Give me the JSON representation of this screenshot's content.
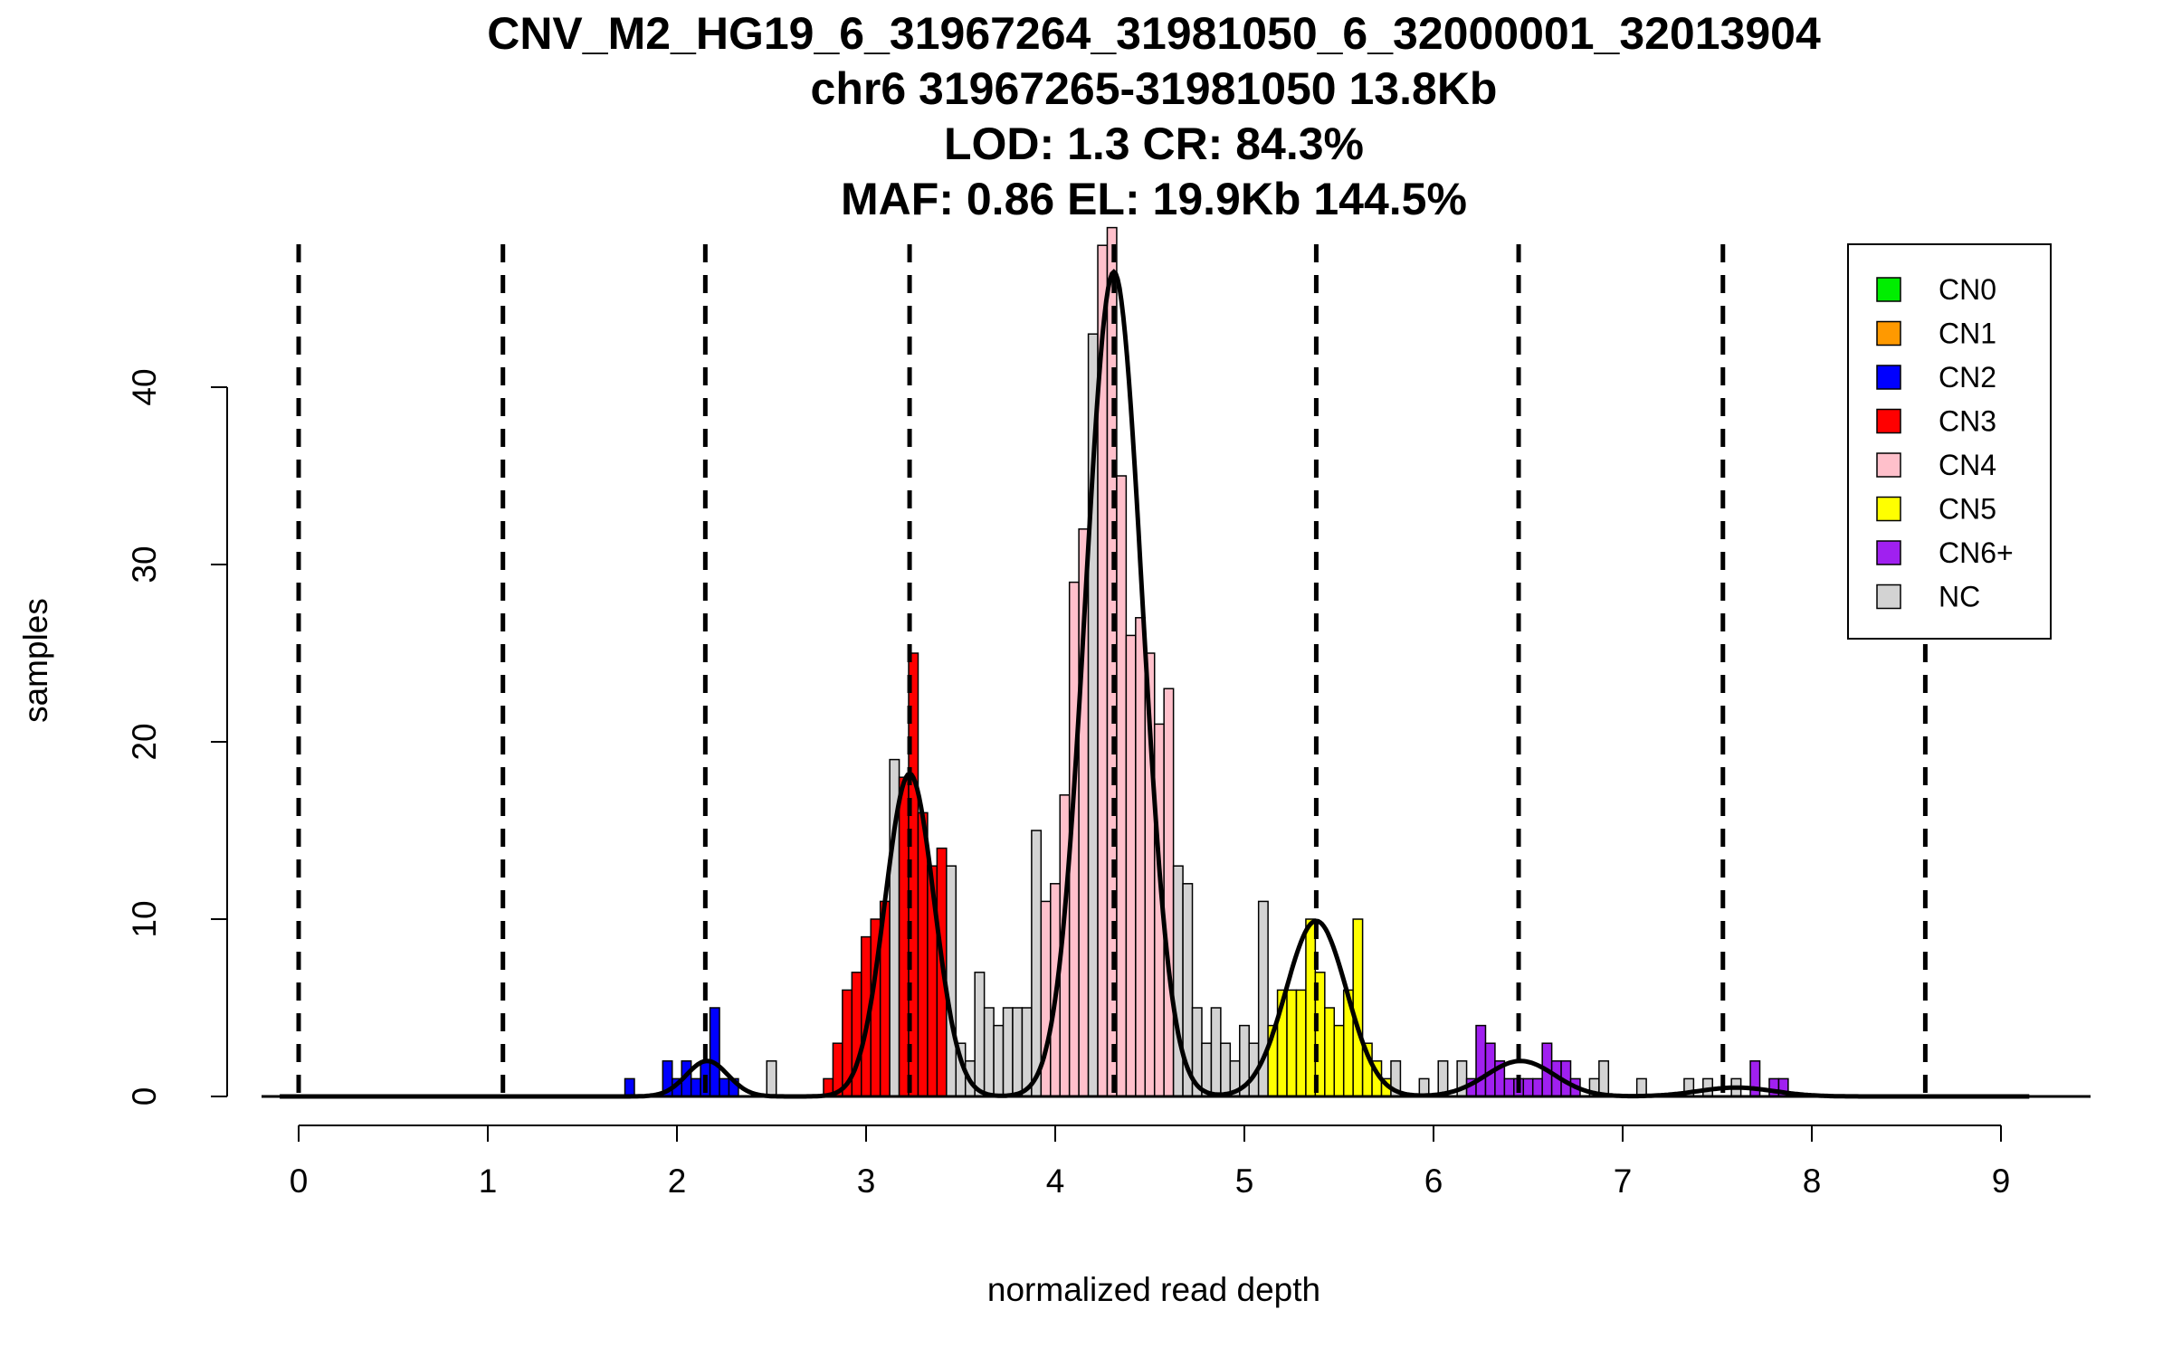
{
  "chart_data": {
    "type": "bar",
    "title_lines": [
      "CNV_M2_HG19_6_31967264_31981050_6_32000001_32013904",
      "chr6 31967265-31981050 13.8Kb",
      "LOD: 1.3 CR: 84.3%",
      "MAF: 0.86 EL: 19.9Kb 144.5%"
    ],
    "xlabel": "normalized read depth",
    "ylabel": "samples",
    "xlim": [
      -0.2,
      9.5
    ],
    "ylim": [
      0,
      48
    ],
    "x_ticks": [
      0,
      1,
      2,
      3,
      4,
      5,
      6,
      7,
      8,
      9
    ],
    "y_ticks": [
      0,
      10,
      20,
      30,
      40
    ],
    "bin_width": 0.05,
    "colors": {
      "CN0": "#00ee00",
      "CN1": "#ff9900",
      "CN2": "#0000ff",
      "CN3": "#ff0000",
      "CN4": "#ffc0cb",
      "CN5": "#ffff00",
      "CN6+": "#a020f0",
      "NC": "#d3d3d3"
    },
    "legend": {
      "position": "top-right",
      "entries": [
        "CN0",
        "CN1",
        "CN2",
        "CN3",
        "CN4",
        "CN5",
        "CN6+",
        "NC"
      ]
    },
    "cutoffs": [
      0,
      1.08,
      2.15,
      3.23,
      4.31,
      5.38,
      6.45,
      7.53,
      8.6
    ],
    "fitted_curves": [
      {
        "mean": 2.16,
        "sd": 0.11,
        "peak": 2
      },
      {
        "mean": 3.23,
        "sd": 0.13,
        "peak": 18.2
      },
      {
        "mean": 4.31,
        "sd": 0.15,
        "peak": 46.5
      },
      {
        "mean": 5.38,
        "sd": 0.16,
        "peak": 9.9
      },
      {
        "mean": 6.46,
        "sd": 0.18,
        "peak": 2
      },
      {
        "mean": 7.6,
        "sd": 0.2,
        "peak": 0.5
      }
    ],
    "bars": [
      {
        "x": 1.75,
        "y": 1,
        "cn": "CN2"
      },
      {
        "x": 1.95,
        "y": 2,
        "cn": "CN2"
      },
      {
        "x": 2.0,
        "y": 1,
        "cn": "CN2"
      },
      {
        "x": 2.05,
        "y": 2,
        "cn": "CN2"
      },
      {
        "x": 2.1,
        "y": 1,
        "cn": "CN2"
      },
      {
        "x": 2.15,
        "y": 2,
        "cn": "CN2"
      },
      {
        "x": 2.2,
        "y": 5,
        "cn": "CN2"
      },
      {
        "x": 2.25,
        "y": 1,
        "cn": "CN2"
      },
      {
        "x": 2.3,
        "y": 1,
        "cn": "CN2"
      },
      {
        "x": 2.5,
        "y": 2,
        "cn": "NC"
      },
      {
        "x": 2.8,
        "y": 1,
        "cn": "CN3"
      },
      {
        "x": 2.85,
        "y": 3,
        "cn": "CN3"
      },
      {
        "x": 2.9,
        "y": 6,
        "cn": "CN3"
      },
      {
        "x": 2.95,
        "y": 7,
        "cn": "CN3"
      },
      {
        "x": 3.0,
        "y": 9,
        "cn": "CN3"
      },
      {
        "x": 3.05,
        "y": 10,
        "cn": "CN3"
      },
      {
        "x": 3.1,
        "y": 11,
        "cn": "CN3"
      },
      {
        "x": 3.15,
        "y": 19,
        "cn": "NC"
      },
      {
        "x": 3.2,
        "y": 18,
        "cn": "CN3"
      },
      {
        "x": 3.25,
        "y": 25,
        "cn": "CN3"
      },
      {
        "x": 3.3,
        "y": 16,
        "cn": "CN3"
      },
      {
        "x": 3.35,
        "y": 13,
        "cn": "CN3"
      },
      {
        "x": 3.4,
        "y": 14,
        "cn": "CN3"
      },
      {
        "x": 3.45,
        "y": 13,
        "cn": "NC"
      },
      {
        "x": 3.5,
        "y": 3,
        "cn": "NC"
      },
      {
        "x": 3.55,
        "y": 2,
        "cn": "NC"
      },
      {
        "x": 3.6,
        "y": 7,
        "cn": "NC"
      },
      {
        "x": 3.65,
        "y": 5,
        "cn": "NC"
      },
      {
        "x": 3.7,
        "y": 4,
        "cn": "NC"
      },
      {
        "x": 3.75,
        "y": 5,
        "cn": "NC"
      },
      {
        "x": 3.8,
        "y": 5,
        "cn": "NC"
      },
      {
        "x": 3.85,
        "y": 5,
        "cn": "NC"
      },
      {
        "x": 3.9,
        "y": 15,
        "cn": "NC"
      },
      {
        "x": 3.95,
        "y": 11,
        "cn": "CN4"
      },
      {
        "x": 4.0,
        "y": 12,
        "cn": "CN4"
      },
      {
        "x": 4.05,
        "y": 17,
        "cn": "CN4"
      },
      {
        "x": 4.1,
        "y": 29,
        "cn": "CN4"
      },
      {
        "x": 4.15,
        "y": 32,
        "cn": "CN4"
      },
      {
        "x": 4.2,
        "y": 43,
        "cn": "NC"
      },
      {
        "x": 4.25,
        "y": 48,
        "cn": "CN4"
      },
      {
        "x": 4.3,
        "y": 49,
        "cn": "CN4"
      },
      {
        "x": 4.35,
        "y": 35,
        "cn": "CN4"
      },
      {
        "x": 4.4,
        "y": 26,
        "cn": "CN4"
      },
      {
        "x": 4.45,
        "y": 27,
        "cn": "CN4"
      },
      {
        "x": 4.5,
        "y": 25,
        "cn": "CN4"
      },
      {
        "x": 4.55,
        "y": 21,
        "cn": "CN4"
      },
      {
        "x": 4.6,
        "y": 23,
        "cn": "CN4"
      },
      {
        "x": 4.65,
        "y": 13,
        "cn": "NC"
      },
      {
        "x": 4.7,
        "y": 12,
        "cn": "NC"
      },
      {
        "x": 4.75,
        "y": 5,
        "cn": "NC"
      },
      {
        "x": 4.8,
        "y": 3,
        "cn": "NC"
      },
      {
        "x": 4.85,
        "y": 5,
        "cn": "NC"
      },
      {
        "x": 4.9,
        "y": 3,
        "cn": "NC"
      },
      {
        "x": 4.95,
        "y": 2,
        "cn": "NC"
      },
      {
        "x": 5.0,
        "y": 4,
        "cn": "NC"
      },
      {
        "x": 5.05,
        "y": 3,
        "cn": "NC"
      },
      {
        "x": 5.1,
        "y": 11,
        "cn": "NC"
      },
      {
        "x": 5.15,
        "y": 4,
        "cn": "CN5"
      },
      {
        "x": 5.2,
        "y": 6,
        "cn": "CN5"
      },
      {
        "x": 5.25,
        "y": 6,
        "cn": "CN5"
      },
      {
        "x": 5.3,
        "y": 6,
        "cn": "CN5"
      },
      {
        "x": 5.35,
        "y": 10,
        "cn": "CN5"
      },
      {
        "x": 5.4,
        "y": 7,
        "cn": "CN5"
      },
      {
        "x": 5.45,
        "y": 5,
        "cn": "CN5"
      },
      {
        "x": 5.5,
        "y": 4,
        "cn": "CN5"
      },
      {
        "x": 5.55,
        "y": 6,
        "cn": "CN5"
      },
      {
        "x": 5.6,
        "y": 10,
        "cn": "CN5"
      },
      {
        "x": 5.65,
        "y": 3,
        "cn": "CN5"
      },
      {
        "x": 5.7,
        "y": 2,
        "cn": "CN5"
      },
      {
        "x": 5.75,
        "y": 1,
        "cn": "CN5"
      },
      {
        "x": 5.8,
        "y": 2,
        "cn": "NC"
      },
      {
        "x": 5.95,
        "y": 1,
        "cn": "NC"
      },
      {
        "x": 6.05,
        "y": 2,
        "cn": "NC"
      },
      {
        "x": 6.15,
        "y": 2,
        "cn": "NC"
      },
      {
        "x": 6.2,
        "y": 1,
        "cn": "CN6+"
      },
      {
        "x": 6.25,
        "y": 4,
        "cn": "CN6+"
      },
      {
        "x": 6.3,
        "y": 3,
        "cn": "CN6+"
      },
      {
        "x": 6.35,
        "y": 2,
        "cn": "CN6+"
      },
      {
        "x": 6.4,
        "y": 1,
        "cn": "CN6+"
      },
      {
        "x": 6.45,
        "y": 1,
        "cn": "CN6+"
      },
      {
        "x": 6.5,
        "y": 1,
        "cn": "CN6+"
      },
      {
        "x": 6.55,
        "y": 1,
        "cn": "CN6+"
      },
      {
        "x": 6.6,
        "y": 3,
        "cn": "CN6+"
      },
      {
        "x": 6.65,
        "y": 2,
        "cn": "CN6+"
      },
      {
        "x": 6.7,
        "y": 2,
        "cn": "CN6+"
      },
      {
        "x": 6.75,
        "y": 1,
        "cn": "CN6+"
      },
      {
        "x": 6.85,
        "y": 1,
        "cn": "NC"
      },
      {
        "x": 6.9,
        "y": 2,
        "cn": "NC"
      },
      {
        "x": 7.1,
        "y": 1,
        "cn": "NC"
      },
      {
        "x": 7.35,
        "y": 1,
        "cn": "NC"
      },
      {
        "x": 7.45,
        "y": 1,
        "cn": "NC"
      },
      {
        "x": 7.6,
        "y": 1,
        "cn": "NC"
      },
      {
        "x": 7.7,
        "y": 2,
        "cn": "CN6+"
      },
      {
        "x": 7.8,
        "y": 1,
        "cn": "CN6+"
      },
      {
        "x": 7.85,
        "y": 1,
        "cn": "CN6+"
      }
    ]
  }
}
